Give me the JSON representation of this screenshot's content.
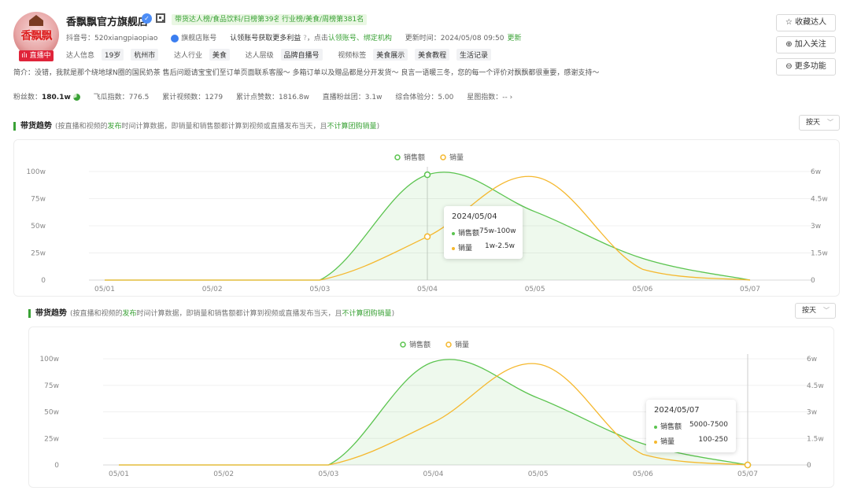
{
  "profile": {
    "name": "香飘飘官方旗舰店",
    "avatar_brand": "香飘飘",
    "live_badge": "直播中",
    "rank_tags": [
      "带货达人榜/食品饮料/日榜第39名",
      "行业榜/美食/周榜第381名"
    ],
    "douyin_id": "抖音号：520xiangpiaopiao",
    "account_type": "旗舰店账号",
    "claim_text": "认领账号获取更多利益",
    "claim_prefix": "，点击",
    "claim_link": "认领账号、绑定机构",
    "update_time": "更新时间：2024/05/08 09:50",
    "update_link": "更新",
    "info_label": "达人信息",
    "age": "19岁",
    "city": "杭州市",
    "industry_label": "达人行业",
    "industry": "美食",
    "level_label": "达人层级",
    "level": "品牌自播号",
    "video_tag_label": "视频标签",
    "video_tags": [
      "美食展示",
      "美食教程",
      "生活记录"
    ],
    "intro": "简介：没错，我就是那个绕地球N圈的国民奶茶 售后问题请宝宝们至订单页面联系客服～ 多箱订单以及赠品都是分开发货～ 良言一语暖三冬，您的每一个评价对飘飘都很重要，感谢支持～"
  },
  "stats": [
    {
      "label": "粉丝数：",
      "value": "180.1w"
    },
    {
      "label": "飞瓜指数：",
      "value": "776.5"
    },
    {
      "label": "累计视频数：",
      "value": "1279"
    },
    {
      "label": "累计点赞数：",
      "value": "1816.8w"
    },
    {
      "label": "直播粉丝团：",
      "value": "3.1w"
    },
    {
      "label": "综合体验分：",
      "value": "5.00"
    },
    {
      "label": "星图指数：",
      "value": "-- ›"
    }
  ],
  "actions": {
    "favorite": "☆ 收藏达人",
    "follow": "⊕ 加入关注",
    "more": "⊖ 更多功能"
  },
  "colors": {
    "green": "#5bc44f",
    "yellow": "#f5b82e",
    "brand_green": "#3aa236"
  },
  "trend": {
    "title": "带货趋势",
    "note_pre": "(按直播和视频的",
    "note_mid": "发布",
    "note_post": "时间计算数据，即销量和销售额都计算到视频或直播发布当天，且",
    "note_end": "不计算团购销量",
    "note_close": ")",
    "select": "按天",
    "legend_sales_amount": "销售额",
    "legend_sales_volume": "销量"
  },
  "chart_data": [
    {
      "type": "area",
      "x": [
        "05/01",
        "05/02",
        "05/03",
        "05/04",
        "05/05",
        "05/06",
        "05/07"
      ],
      "y_left_ticks": [
        "0",
        "25w",
        "50w",
        "75w",
        "100w"
      ],
      "y_right_ticks": [
        "0",
        "1.5w",
        "3w",
        "4.5w",
        "6w"
      ],
      "series": [
        {
          "name": "销售额",
          "axis": "left",
          "values": [
            0,
            0,
            0,
            97,
            63,
            20,
            0
          ]
        },
        {
          "name": "销量",
          "axis": "right",
          "values": [
            0,
            0,
            0,
            2.4,
            5.7,
            0.6,
            0
          ]
        }
      ],
      "tooltip": {
        "date": "2024/05/04",
        "sales_amount": "75w-100w",
        "sales_volume": "1w-2.5w"
      },
      "highlight_index": 3
    },
    {
      "type": "area",
      "x": [
        "05/01",
        "05/02",
        "05/03",
        "05/04",
        "05/05",
        "05/06",
        "05/07"
      ],
      "y_left_ticks": [
        "0",
        "25w",
        "50w",
        "75w",
        "100w"
      ],
      "y_right_ticks": [
        "0",
        "1.5w",
        "3w",
        "4.5w",
        "6w"
      ],
      "series": [
        {
          "name": "销售额",
          "axis": "left",
          "values": [
            0,
            0,
            0,
            97,
            63,
            20,
            0
          ]
        },
        {
          "name": "销量",
          "axis": "right",
          "values": [
            0,
            0,
            0,
            2.4,
            5.7,
            0.6,
            0
          ]
        }
      ],
      "tooltip": {
        "date": "2024/05/07",
        "sales_amount": "5000-7500",
        "sales_volume": "100-250"
      },
      "highlight_index": 6
    }
  ]
}
